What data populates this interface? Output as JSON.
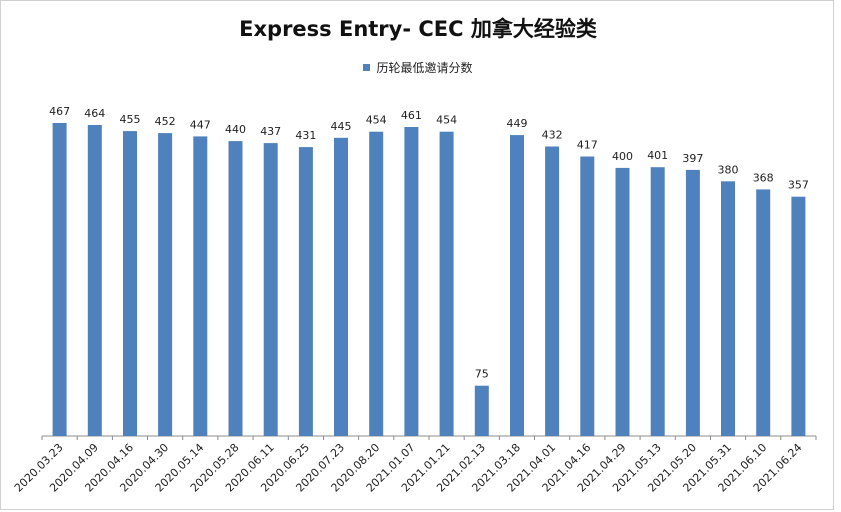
{
  "chart_data": {
    "type": "bar",
    "title": "Express Entry- CEC 加拿大经验类",
    "legend_position": "top",
    "grid": false,
    "series": [
      {
        "name": "历轮最低邀请分数",
        "color": "#4F81BD",
        "values": [
          467,
          464,
          455,
          452,
          447,
          440,
          437,
          431,
          445,
          454,
          461,
          454,
          75,
          449,
          432,
          417,
          400,
          401,
          397,
          380,
          368,
          357
        ]
      }
    ],
    "categories": [
      "2020.03.23",
      "2020.04.09",
      "2020.04.16",
      "2020.04.30",
      "2020.05.14",
      "2020.05.28",
      "2020.06.11",
      "2020.06.25",
      "2020.07.23",
      "2020.08.20",
      "2021.01.07",
      "2021.01.21",
      "2021.02.13",
      "2021.03.18",
      "2021.04.01",
      "2021.04.16",
      "2021.04.29",
      "2021.05.13",
      "2021.05.20",
      "2021.05.31",
      "2021.06.10",
      "2021.06.24"
    ],
    "ylim": [
      0,
      470
    ]
  }
}
